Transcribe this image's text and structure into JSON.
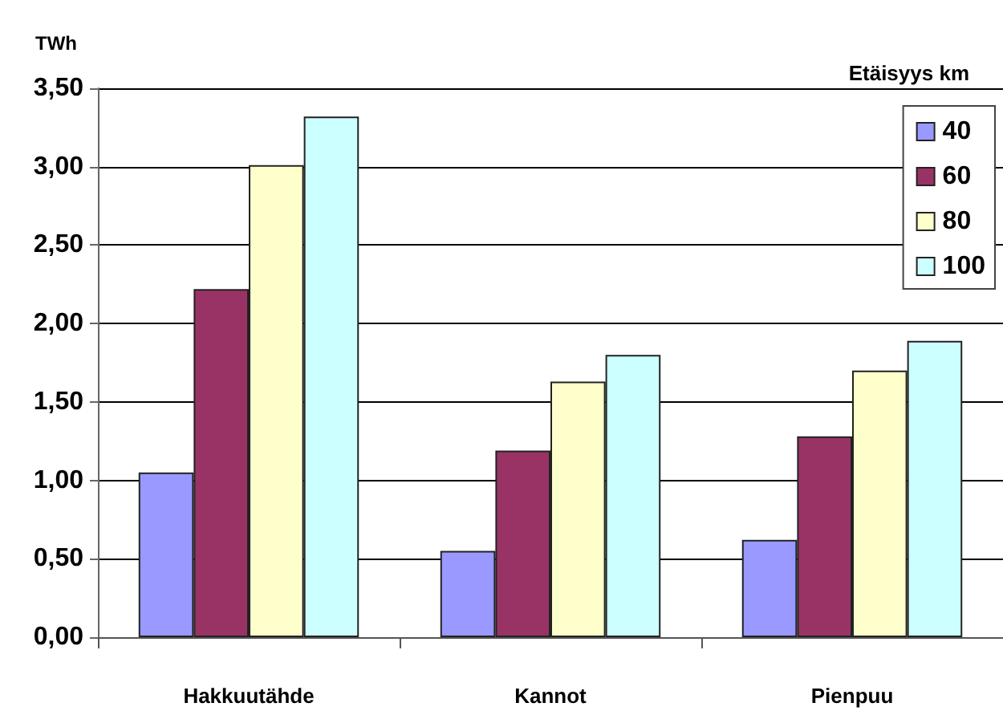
{
  "chart_data": {
    "type": "bar",
    "ylabel": "TWh",
    "legend_title": "Etäisyys km",
    "categories": [
      "Hakkuutähde",
      "Kannot",
      "Pienpuu"
    ],
    "series": [
      {
        "name": "40",
        "color": "#9999ff",
        "values": [
          1.05,
          0.55,
          0.62
        ]
      },
      {
        "name": "60",
        "color": "#993366",
        "values": [
          2.22,
          1.19,
          1.28
        ]
      },
      {
        "name": "80",
        "color": "#ffffcc",
        "values": [
          3.01,
          1.63,
          1.7
        ]
      },
      {
        "name": "100",
        "color": "#ccffff",
        "values": [
          3.32,
          1.8,
          1.89
        ]
      }
    ],
    "ylim": [
      0,
      3.5
    ],
    "yticks": [
      {
        "value": 0,
        "label": "0,00"
      },
      {
        "value": 0.5,
        "label": "0,50"
      },
      {
        "value": 1,
        "label": "1,00"
      },
      {
        "value": 1.5,
        "label": "1,50"
      },
      {
        "value": 2,
        "label": "2,00"
      },
      {
        "value": 2.5,
        "label": "2,50"
      },
      {
        "value": 3,
        "label": "3,00"
      },
      {
        "value": 3.5,
        "label": "3,50"
      }
    ],
    "grid": "y",
    "legend": "top right"
  }
}
